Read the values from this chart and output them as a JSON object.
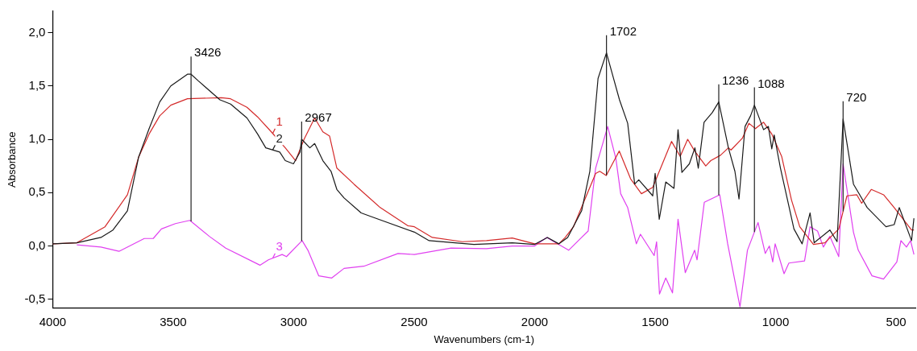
{
  "chart_data": {
    "type": "line",
    "xlabel": "Wavenumbers (cm-1)",
    "ylabel": "Absorbance",
    "xlim": [
      4000,
      420
    ],
    "xticks": [
      4000,
      3500,
      3000,
      2500,
      2000,
      1500,
      1000,
      500
    ],
    "ylim": [
      -0.58,
      2.2
    ],
    "yticks": [
      {
        "value": -0.5,
        "label": "-0,5"
      },
      {
        "value": 0,
        "label": "0,0"
      },
      {
        "value": 0.5,
        "label": "0,5"
      },
      {
        "value": 1,
        "label": "1,0"
      },
      {
        "value": 1.5,
        "label": "1,5"
      },
      {
        "value": 2,
        "label": "2,0"
      }
    ],
    "grid": false,
    "marker": "none",
    "line_style": "solid",
    "series": [
      {
        "name": "2",
        "color": "#1a1a1a",
        "x": [
          4000,
          3900,
          3800,
          3750,
          3690,
          3644,
          3600,
          3556,
          3510,
          3441,
          3426,
          3397,
          3306,
          3262,
          3194,
          3150,
          3116,
          3058,
          3035,
          3001,
          2974,
          2967,
          2933,
          2913,
          2879,
          2845,
          2821,
          2791,
          2720,
          2672,
          2499,
          2438,
          2252,
          2093,
          2000,
          1947,
          1900,
          1863,
          1805,
          1771,
          1737,
          1702,
          1648,
          1614,
          1585,
          1568,
          1510,
          1500,
          1483,
          1456,
          1422,
          1405,
          1389,
          1358,
          1335,
          1321,
          1297,
          1263,
          1236,
          1196,
          1169,
          1152,
          1127,
          1104,
          1088,
          1050,
          1030,
          1016,
          1006,
          980,
          924,
          890,
          857,
          840,
          775,
          745,
          720,
          677,
          620,
          542,
          508,
          487,
          436,
          426
        ],
        "values": [
          0.02,
          0.03,
          0.08,
          0.15,
          0.33,
          0.83,
          1.1,
          1.35,
          1.5,
          1.61,
          1.61,
          1.55,
          1.37,
          1.33,
          1.2,
          1.05,
          0.92,
          0.88,
          0.8,
          0.77,
          0.88,
          1.0,
          0.92,
          0.96,
          0.8,
          0.7,
          0.53,
          0.45,
          0.31,
          0.27,
          0.13,
          0.05,
          0.015,
          0.03,
          0.015,
          0.08,
          0.02,
          0.08,
          0.33,
          0.7,
          1.57,
          1.81,
          1.37,
          1.15,
          0.58,
          0.62,
          0.47,
          0.68,
          0.25,
          0.6,
          0.54,
          1.09,
          0.69,
          0.77,
          0.92,
          0.73,
          1.16,
          1.25,
          1.35,
          0.92,
          0.7,
          0.44,
          1.12,
          1.22,
          1.32,
          1.09,
          1.12,
          0.91,
          1.04,
          0.73,
          0.16,
          0.02,
          0.31,
          0.03,
          0.15,
          0.04,
          1.19,
          0.58,
          0.36,
          0.18,
          0.2,
          0.36,
          0.05,
          0.26
        ]
      },
      {
        "name": "1",
        "color": "#d42a2a",
        "x": [
          4000,
          3900,
          3783,
          3690,
          3644,
          3600,
          3556,
          3510,
          3441,
          3300,
          3262,
          3194,
          3150,
          3093,
          3035,
          2992,
          2957,
          2913,
          2879,
          2851,
          2821,
          2750,
          2641,
          2527,
          2499,
          2425,
          2300,
          2200,
          2093,
          2000,
          1900,
          1873,
          1839,
          1747,
          1730,
          1703,
          1649,
          1602,
          1557,
          1510,
          1432,
          1396,
          1365,
          1336,
          1290,
          1269,
          1229,
          1196,
          1185,
          1138,
          1111,
          1084,
          1050,
          1016,
          975,
          934,
          900,
          843,
          796,
          738,
          704,
          663,
          643,
          603,
          552,
          508,
          436,
          426
        ],
        "values": [
          0.02,
          0.03,
          0.18,
          0.48,
          0.83,
          1.05,
          1.22,
          1.32,
          1.38,
          1.39,
          1.38,
          1.3,
          1.21,
          1.07,
          0.92,
          0.8,
          1.0,
          1.2,
          1.07,
          1.03,
          0.73,
          0.58,
          0.36,
          0.19,
          0.18,
          0.08,
          0.04,
          0.05,
          0.075,
          0.02,
          0.02,
          0.08,
          0.18,
          0.68,
          0.7,
          0.66,
          0.89,
          0.63,
          0.49,
          0.55,
          0.98,
          0.84,
          1.0,
          0.89,
          0.75,
          0.8,
          0.85,
          0.92,
          0.9,
          1.01,
          1.15,
          1.1,
          1.16,
          1.05,
          0.84,
          0.43,
          0.18,
          0.015,
          0.03,
          0.16,
          0.47,
          0.48,
          0.4,
          0.53,
          0.48,
          0.36,
          0.15,
          0.15
        ]
      },
      {
        "name": "3",
        "color": "#e040f0",
        "x": [
          3900,
          3800,
          3725,
          3620,
          3583,
          3549,
          3491,
          3431,
          3350,
          3282,
          3140,
          3105,
          3048,
          3030,
          2965,
          2941,
          2896,
          2842,
          2791,
          2709,
          2567,
          2499,
          2347,
          2200,
          2093,
          2000,
          1950,
          1859,
          1805,
          1778,
          1747,
          1697,
          1663,
          1643,
          1614,
          1578,
          1561,
          1504,
          1494,
          1482,
          1456,
          1428,
          1405,
          1375,
          1336,
          1326,
          1296,
          1232,
          1199,
          1148,
          1117,
          1073,
          1043,
          1026,
          1012,
          1002,
          965,
          945,
          880,
          857,
          826,
          802,
          775,
          738,
          720,
          677,
          657,
          600,
          552,
          497,
          480,
          457,
          440,
          426
        ],
        "values": [
          0.01,
          -0.01,
          -0.05,
          0.07,
          0.07,
          0.16,
          0.21,
          0.24,
          0.09,
          -0.02,
          -0.18,
          -0.13,
          -0.08,
          -0.1,
          0.05,
          -0.04,
          -0.28,
          -0.3,
          -0.21,
          -0.19,
          -0.07,
          -0.08,
          -0.02,
          -0.025,
          0.0,
          0.0,
          0.08,
          -0.04,
          0.08,
          0.14,
          0.73,
          1.12,
          0.82,
          0.49,
          0.36,
          0.02,
          0.11,
          -0.09,
          0.04,
          -0.45,
          -0.3,
          -0.44,
          0.25,
          -0.25,
          -0.04,
          -0.13,
          0.41,
          0.48,
          0.02,
          -0.57,
          -0.04,
          0.22,
          -0.07,
          0.0,
          -0.15,
          0.02,
          -0.26,
          -0.16,
          -0.14,
          0.18,
          0.14,
          -0.01,
          0.09,
          -0.1,
          0.77,
          0.13,
          -0.04,
          -0.28,
          -0.31,
          -0.15,
          0.05,
          -0.01,
          0.05,
          -0.08
        ]
      }
    ],
    "annotations": [
      {
        "text": "3426",
        "x": 3426,
        "y": 1.61
      },
      {
        "text": "2967",
        "x": 2967,
        "y": 1.0
      },
      {
        "text": "1702",
        "x": 1702,
        "y": 1.81
      },
      {
        "text": "1236",
        "x": 1236,
        "y": 1.35
      },
      {
        "text": "1088",
        "x": 1088,
        "y": 1.32
      },
      {
        "text": "720",
        "x": 720,
        "y": 1.19
      }
    ]
  }
}
